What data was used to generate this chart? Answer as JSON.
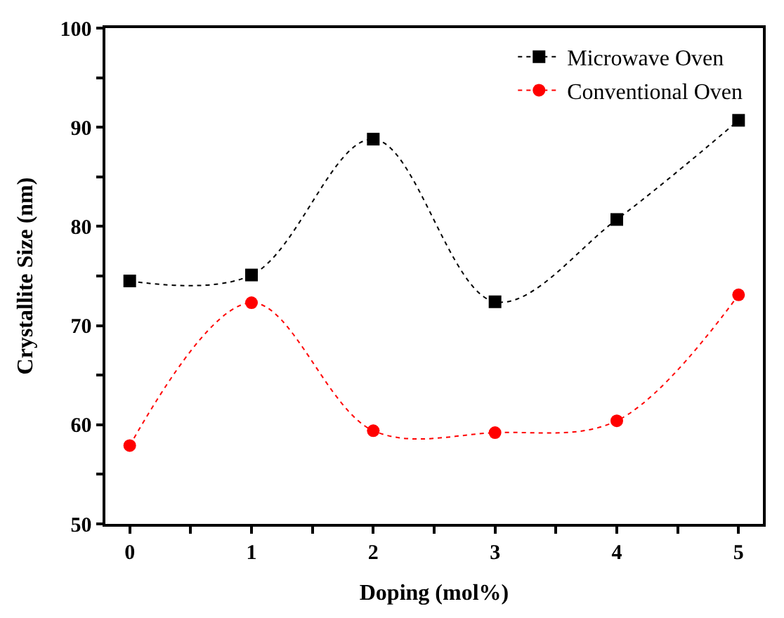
{
  "chart_data": {
    "type": "line",
    "xlabel": "Doping (mol%)",
    "ylabel": "Crystallite Size (nm)",
    "x": [
      0,
      1,
      2,
      3,
      4,
      5
    ],
    "series": [
      {
        "name": "Microwave Oven",
        "color": "#000000",
        "marker": "square",
        "values": [
          74.5,
          75.1,
          88.8,
          72.4,
          80.7,
          90.7
        ]
      },
      {
        "name": "Conventional Oven",
        "color": "#ff0000",
        "marker": "circle",
        "values": [
          57.9,
          72.3,
          59.4,
          59.2,
          60.4,
          73.1
        ]
      }
    ],
    "xlim": [
      -0.2,
      5.2
    ],
    "ylim": [
      50,
      100
    ],
    "xticks": [
      0,
      {
        "value": 0.5,
        "label": null
      },
      1,
      {
        "value": 1.5,
        "label": null
      },
      2,
      {
        "value": 2.5,
        "label": null
      },
      3,
      {
        "value": 3.5,
        "label": null
      },
      4,
      {
        "value": 4.5,
        "label": null
      },
      5
    ],
    "yticks": [
      50,
      {
        "value": 55,
        "label": null
      },
      60,
      {
        "value": 65,
        "label": null
      },
      70,
      {
        "value": 75,
        "label": null
      },
      80,
      {
        "value": 85,
        "label": null
      },
      90,
      {
        "value": 95,
        "label": null
      },
      100
    ],
    "line_style": "dotted",
    "legend": "top right"
  }
}
